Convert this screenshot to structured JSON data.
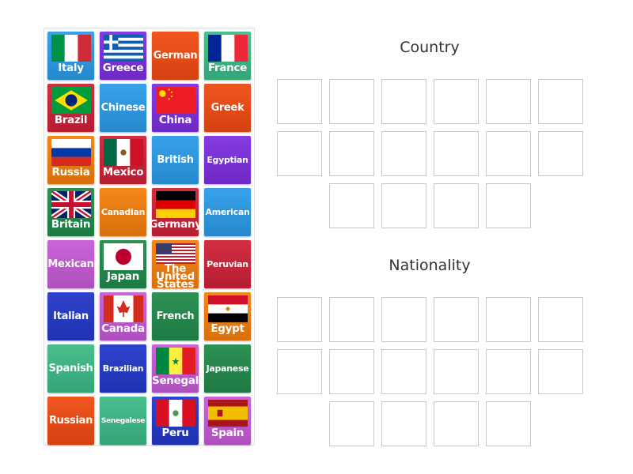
{
  "colors": {
    "blue": "#2b9ce8",
    "purple": "#7d2fe0",
    "orangered": "#f04b12",
    "mint": "#3dbb87",
    "crimson": "#cf2137",
    "orange": "#f57f0c",
    "darkgreen": "#218a4b",
    "royal": "#2238c9",
    "magenta": "#c55bd6"
  },
  "tiles": [
    {
      "label": "Italy",
      "color": "blue",
      "flag": "italy"
    },
    {
      "label": "Greece",
      "color": "purple",
      "flag": "greece"
    },
    {
      "label": "German",
      "color": "orangered"
    },
    {
      "label": "France",
      "color": "mint",
      "flag": "france"
    },
    {
      "label": "Brazil",
      "color": "crimson",
      "flag": "brazil"
    },
    {
      "label": "Chinese",
      "color": "blue"
    },
    {
      "label": "China",
      "color": "purple",
      "flag": "china"
    },
    {
      "label": "Greek",
      "color": "orangered"
    },
    {
      "label": "Russia",
      "color": "orange",
      "flag": "russia"
    },
    {
      "label": "Mexico",
      "color": "crimson",
      "flag": "mexico"
    },
    {
      "label": "British",
      "color": "blue"
    },
    {
      "label": "Egyptian",
      "color": "purple"
    },
    {
      "label": "Britain",
      "color": "darkgreen",
      "flag": "uk"
    },
    {
      "label": "Canadian",
      "color": "orange"
    },
    {
      "label": "Germany",
      "color": "crimson",
      "flag": "germany"
    },
    {
      "label": "American",
      "color": "blue"
    },
    {
      "label": "Mexican",
      "color": "magenta"
    },
    {
      "label": "Japan",
      "color": "darkgreen",
      "flag": "japan"
    },
    {
      "label": "The United States",
      "color": "orange",
      "flag": "usa"
    },
    {
      "label": "Peruvian",
      "color": "crimson"
    },
    {
      "label": "Italian",
      "color": "royal"
    },
    {
      "label": "Canada",
      "color": "magenta",
      "flag": "canada"
    },
    {
      "label": "French",
      "color": "darkgreen"
    },
    {
      "label": "Egypt",
      "color": "orange",
      "flag": "egypt"
    },
    {
      "label": "Spanish",
      "color": "mint"
    },
    {
      "label": "Brazilian",
      "color": "royal"
    },
    {
      "label": "Senegal",
      "color": "magenta",
      "flag": "senegal"
    },
    {
      "label": "Japanese",
      "color": "darkgreen"
    },
    {
      "label": "Russian",
      "color": "orangered"
    },
    {
      "label": "Senegalese",
      "color": "mint"
    },
    {
      "label": "Peru",
      "color": "royal",
      "flag": "peru"
    },
    {
      "label": "Spain",
      "color": "magenta",
      "flag": "spain"
    }
  ],
  "groups": [
    {
      "title": "Country"
    },
    {
      "title": "Nationality"
    }
  ]
}
